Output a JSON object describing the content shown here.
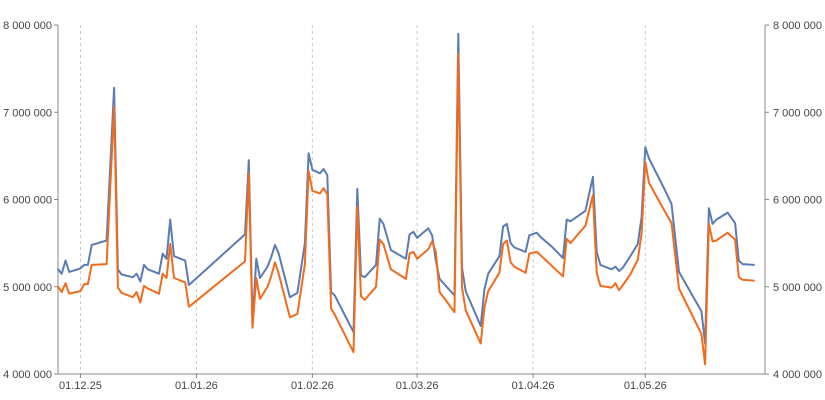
{
  "chart_data": {
    "type": "line",
    "title": "",
    "xlabel": "",
    "ylabel": "",
    "x_ticks": [
      {
        "label": "01.12.25",
        "date": "2025-12-01"
      },
      {
        "label": "01.01.26",
        "date": "2026-01-01"
      },
      {
        "label": "01.02.26",
        "date": "2026-02-01"
      },
      {
        "label": "01.03.26",
        "date": "2026-03-01"
      },
      {
        "label": "01.04.26",
        "date": "2026-04-01"
      },
      {
        "label": "01.05.26",
        "date": "2026-05-01"
      }
    ],
    "y_ticks": [
      {
        "label": "4 000 000",
        "value": 4000000
      },
      {
        "label": "5 000 000",
        "value": 5000000
      },
      {
        "label": "6 000 000",
        "value": 6000000
      },
      {
        "label": "7 000 000",
        "value": 7000000
      },
      {
        "label": "8 000 000",
        "value": 8000000
      }
    ],
    "ylim": [
      4000000,
      8000000
    ],
    "xlim": [
      "2025-11-25",
      "2026-06-02"
    ],
    "grid": {
      "vertical": true,
      "horizontal": false,
      "style": "dashed"
    },
    "legend": "none",
    "colors": {
      "series_1": "#5b7bb3",
      "series_2": "#f26b1d",
      "grid": "#c8c8c8",
      "axis": "#888888",
      "text": "#444444"
    },
    "series": [
      {
        "color": "#5b7bb3",
        "points": [
          [
            "2025-11-25",
            5200000
          ],
          [
            "2025-11-26",
            5150000
          ],
          [
            "2025-11-27",
            5300000
          ],
          [
            "2025-11-28",
            5170000
          ],
          [
            "2025-12-01",
            5210000
          ],
          [
            "2025-12-02",
            5250000
          ],
          [
            "2025-12-03",
            5250000
          ],
          [
            "2025-12-04",
            5480000
          ],
          [
            "2025-12-08",
            5530000
          ],
          [
            "2025-12-10",
            7280000
          ],
          [
            "2025-12-11",
            5200000
          ],
          [
            "2025-12-12",
            5140000
          ],
          [
            "2025-12-15",
            5110000
          ],
          [
            "2025-12-16",
            5150000
          ],
          [
            "2025-12-17",
            5060000
          ],
          [
            "2025-12-18",
            5250000
          ],
          [
            "2025-12-19",
            5200000
          ],
          [
            "2025-12-22",
            5150000
          ],
          [
            "2025-12-23",
            5380000
          ],
          [
            "2025-12-24",
            5320000
          ],
          [
            "2025-12-25",
            5770000
          ],
          [
            "2025-12-26",
            5350000
          ],
          [
            "2025-12-29",
            5300000
          ],
          [
            "2025-12-30",
            5020000
          ],
          [
            "2026-01-14",
            5600000
          ],
          [
            "2026-01-15",
            6450000
          ],
          [
            "2026-01-16",
            4590000
          ],
          [
            "2026-01-17",
            5320000
          ],
          [
            "2026-01-18",
            5100000
          ],
          [
            "2026-01-20",
            5230000
          ],
          [
            "2026-01-21",
            5340000
          ],
          [
            "2026-01-22",
            5480000
          ],
          [
            "2026-01-23",
            5380000
          ],
          [
            "2026-01-26",
            4880000
          ],
          [
            "2026-01-28",
            4930000
          ],
          [
            "2026-01-30",
            5500000
          ],
          [
            "2026-01-31",
            6530000
          ],
          [
            "2026-02-01",
            6340000
          ],
          [
            "2026-02-03",
            6300000
          ],
          [
            "2026-02-04",
            6350000
          ],
          [
            "2026-02-05",
            6280000
          ],
          [
            "2026-02-06",
            4940000
          ],
          [
            "2026-02-07",
            4900000
          ],
          [
            "2026-02-12",
            4480000
          ],
          [
            "2026-02-13",
            6120000
          ],
          [
            "2026-02-14",
            5130000
          ],
          [
            "2026-02-15",
            5110000
          ],
          [
            "2026-02-18",
            5250000
          ],
          [
            "2026-02-19",
            5780000
          ],
          [
            "2026-02-20",
            5720000
          ],
          [
            "2026-02-22",
            5420000
          ],
          [
            "2026-02-26",
            5320000
          ],
          [
            "2026-02-27",
            5600000
          ],
          [
            "2026-02-28",
            5630000
          ],
          [
            "2026-03-01",
            5560000
          ],
          [
            "2026-03-04",
            5670000
          ],
          [
            "2026-03-05",
            5590000
          ],
          [
            "2026-03-06",
            5300000
          ],
          [
            "2026-03-07",
            5090000
          ],
          [
            "2026-03-11",
            4900000
          ],
          [
            "2026-03-12",
            7900000
          ],
          [
            "2026-03-13",
            5220000
          ],
          [
            "2026-03-14",
            4950000
          ],
          [
            "2026-03-18",
            4550000
          ],
          [
            "2026-03-19",
            4970000
          ],
          [
            "2026-03-20",
            5150000
          ],
          [
            "2026-03-23",
            5350000
          ],
          [
            "2026-03-24",
            5690000
          ],
          [
            "2026-03-25",
            5720000
          ],
          [
            "2026-03-26",
            5500000
          ],
          [
            "2026-03-27",
            5450000
          ],
          [
            "2026-03-30",
            5400000
          ],
          [
            "2026-03-31",
            5590000
          ],
          [
            "2026-04-02",
            5620000
          ],
          [
            "2026-04-03",
            5570000
          ],
          [
            "2026-04-06",
            5460000
          ],
          [
            "2026-04-09",
            5330000
          ],
          [
            "2026-04-10",
            5770000
          ],
          [
            "2026-04-11",
            5750000
          ],
          [
            "2026-04-15",
            5870000
          ],
          [
            "2026-04-17",
            6260000
          ],
          [
            "2026-04-18",
            5400000
          ],
          [
            "2026-04-19",
            5250000
          ],
          [
            "2026-04-22",
            5200000
          ],
          [
            "2026-04-23",
            5230000
          ],
          [
            "2026-04-24",
            5180000
          ],
          [
            "2026-04-25",
            5220000
          ],
          [
            "2026-04-27",
            5350000
          ],
          [
            "2026-04-29",
            5490000
          ],
          [
            "2026-04-30",
            5800000
          ],
          [
            "2026-05-01",
            6600000
          ],
          [
            "2026-05-02",
            6470000
          ],
          [
            "2026-05-06",
            6130000
          ],
          [
            "2026-05-08",
            5950000
          ],
          [
            "2026-05-10",
            5170000
          ],
          [
            "2026-05-16",
            4720000
          ],
          [
            "2026-05-17",
            4350000
          ],
          [
            "2026-05-18",
            5900000
          ],
          [
            "2026-05-19",
            5720000
          ],
          [
            "2026-05-20",
            5770000
          ],
          [
            "2026-05-23",
            5850000
          ],
          [
            "2026-05-25",
            5730000
          ],
          [
            "2026-05-26",
            5300000
          ],
          [
            "2026-05-27",
            5260000
          ],
          [
            "2026-05-30",
            5250000
          ]
        ]
      },
      {
        "color": "#f26b1d",
        "points": [
          [
            "2025-11-25",
            5000000
          ],
          [
            "2025-11-26",
            4940000
          ],
          [
            "2025-11-27",
            5040000
          ],
          [
            "2025-11-28",
            4920000
          ],
          [
            "2025-12-01",
            4950000
          ],
          [
            "2025-12-02",
            5030000
          ],
          [
            "2025-12-03",
            5030000
          ],
          [
            "2025-12-04",
            5250000
          ],
          [
            "2025-12-08",
            5260000
          ],
          [
            "2025-12-10",
            7060000
          ],
          [
            "2025-12-11",
            4990000
          ],
          [
            "2025-12-12",
            4930000
          ],
          [
            "2025-12-15",
            4880000
          ],
          [
            "2025-12-16",
            4940000
          ],
          [
            "2025-12-17",
            4820000
          ],
          [
            "2025-12-18",
            5010000
          ],
          [
            "2025-12-19",
            4980000
          ],
          [
            "2025-12-22",
            4920000
          ],
          [
            "2025-12-23",
            5150000
          ],
          [
            "2025-12-24",
            5100000
          ],
          [
            "2025-12-25",
            5490000
          ],
          [
            "2025-12-26",
            5100000
          ],
          [
            "2025-12-29",
            5050000
          ],
          [
            "2025-12-30",
            4770000
          ],
          [
            "2026-01-14",
            5290000
          ],
          [
            "2026-01-15",
            6300000
          ],
          [
            "2026-01-16",
            4530000
          ],
          [
            "2026-01-17",
            5100000
          ],
          [
            "2026-01-18",
            4860000
          ],
          [
            "2026-01-20",
            5000000
          ],
          [
            "2026-01-21",
            5120000
          ],
          [
            "2026-01-22",
            5280000
          ],
          [
            "2026-01-23",
            5150000
          ],
          [
            "2026-01-26",
            4650000
          ],
          [
            "2026-01-28",
            4690000
          ],
          [
            "2026-01-30",
            5260000
          ],
          [
            "2026-01-31",
            6330000
          ],
          [
            "2026-02-01",
            6100000
          ],
          [
            "2026-02-03",
            6070000
          ],
          [
            "2026-02-04",
            6130000
          ],
          [
            "2026-02-05",
            6060000
          ],
          [
            "2026-02-06",
            4750000
          ],
          [
            "2026-02-07",
            4680000
          ],
          [
            "2026-02-12",
            4250000
          ],
          [
            "2026-02-13",
            5920000
          ],
          [
            "2026-02-14",
            4890000
          ],
          [
            "2026-02-15",
            4850000
          ],
          [
            "2026-02-18",
            5000000
          ],
          [
            "2026-02-19",
            5540000
          ],
          [
            "2026-02-20",
            5490000
          ],
          [
            "2026-02-22",
            5200000
          ],
          [
            "2026-02-26",
            5090000
          ],
          [
            "2026-02-27",
            5380000
          ],
          [
            "2026-02-28",
            5400000
          ],
          [
            "2026-03-01",
            5320000
          ],
          [
            "2026-03-04",
            5430000
          ],
          [
            "2026-03-05",
            5520000
          ],
          [
            "2026-03-06",
            5400000
          ],
          [
            "2026-03-07",
            4940000
          ],
          [
            "2026-03-11",
            4710000
          ],
          [
            "2026-03-12",
            7670000
          ],
          [
            "2026-03-13",
            4990000
          ],
          [
            "2026-03-14",
            4730000
          ],
          [
            "2026-03-18",
            4350000
          ],
          [
            "2026-03-19",
            4760000
          ],
          [
            "2026-03-20",
            4950000
          ],
          [
            "2026-03-23",
            5160000
          ],
          [
            "2026-03-24",
            5490000
          ],
          [
            "2026-03-25",
            5530000
          ],
          [
            "2026-03-26",
            5280000
          ],
          [
            "2026-03-27",
            5230000
          ],
          [
            "2026-03-30",
            5160000
          ],
          [
            "2026-03-31",
            5380000
          ],
          [
            "2026-04-02",
            5400000
          ],
          [
            "2026-04-03",
            5360000
          ],
          [
            "2026-04-06",
            5240000
          ],
          [
            "2026-04-09",
            5120000
          ],
          [
            "2026-04-10",
            5550000
          ],
          [
            "2026-04-11",
            5500000
          ],
          [
            "2026-04-15",
            5700000
          ],
          [
            "2026-04-17",
            6050000
          ],
          [
            "2026-04-18",
            5160000
          ],
          [
            "2026-04-19",
            5010000
          ],
          [
            "2026-04-22",
            4990000
          ],
          [
            "2026-04-23",
            5040000
          ],
          [
            "2026-04-24",
            4960000
          ],
          [
            "2026-04-25",
            5020000
          ],
          [
            "2026-04-27",
            5140000
          ],
          [
            "2026-04-29",
            5310000
          ],
          [
            "2026-04-30",
            5610000
          ],
          [
            "2026-05-01",
            6430000
          ],
          [
            "2026-05-02",
            6190000
          ],
          [
            "2026-05-06",
            5880000
          ],
          [
            "2026-05-08",
            5730000
          ],
          [
            "2026-05-10",
            4980000
          ],
          [
            "2026-05-16",
            4460000
          ],
          [
            "2026-05-17",
            4110000
          ],
          [
            "2026-05-18",
            5720000
          ],
          [
            "2026-05-19",
            5520000
          ],
          [
            "2026-05-20",
            5530000
          ],
          [
            "2026-05-23",
            5620000
          ],
          [
            "2026-05-25",
            5540000
          ],
          [
            "2026-05-26",
            5110000
          ],
          [
            "2026-05-27",
            5080000
          ],
          [
            "2026-05-30",
            5070000
          ]
        ]
      }
    ]
  }
}
